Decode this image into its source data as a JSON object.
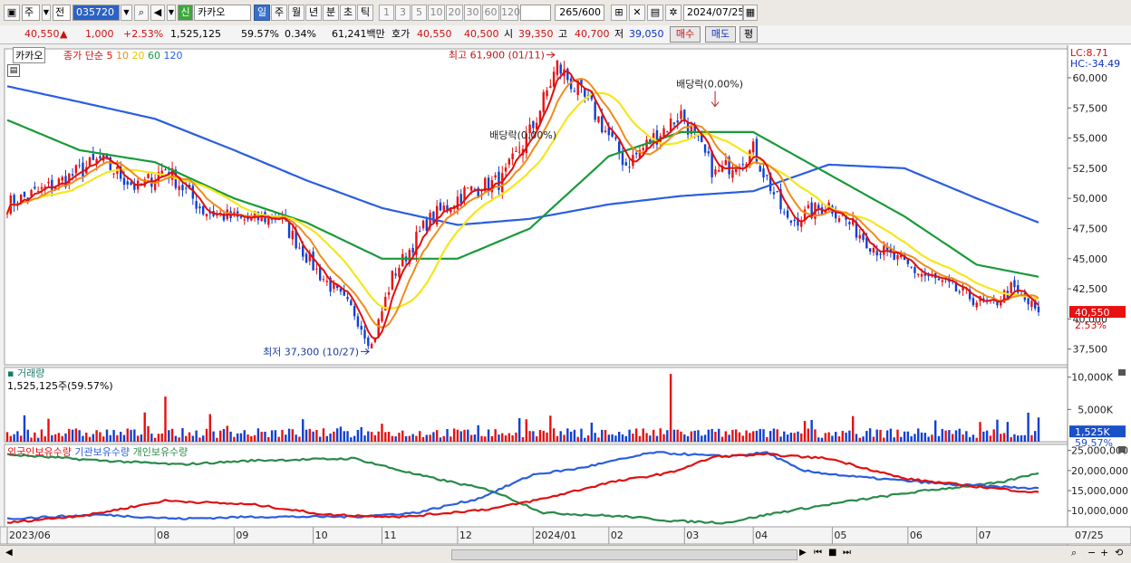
{
  "toolbar": {
    "period": "주",
    "prev": "전",
    "code": "035720",
    "badge": "신",
    "name": "카카오",
    "tabs": [
      "일",
      "주",
      "월",
      "년",
      "분",
      "초",
      "틱"
    ],
    "numtabs": [
      "1",
      "3",
      "5",
      "10",
      "20",
      "30",
      "60",
      "120"
    ],
    "count": "265",
    "count_total": "/600",
    "date": "2024/07/25"
  },
  "quote": {
    "price": "40,550",
    "arrow": "▲",
    "change": "1,000",
    "rate": "+2.53%",
    "volume": "1,525,125",
    "vol_ratio": "59.57%",
    "turnover": "0.34%",
    "amount": "61,241백만",
    "ask_label": "호가",
    "ask": "40,550",
    "bid": "40,500",
    "open_label": "시",
    "open": "39,350",
    "high_label": "고",
    "high": "40,700",
    "low_label": "저",
    "low": "39,050",
    "buy": "매수",
    "sell": "매도",
    "eval": "평"
  },
  "colors": {
    "up": "#e81010",
    "down": "#1040d0",
    "ma5": "#e01010",
    "ma10": "#f08c1c",
    "ma20": "#f5e61c",
    "ma60": "#1a9a3a",
    "ma120": "#2a5ee0",
    "foreign": "#e01010",
    "inst": "#2a5ee0",
    "retail": "#2a8a4a"
  },
  "chart_data": [
    {
      "type": "candlestick",
      "title": "카카오",
      "legend": {
        "price_type": "종가 단순",
        "ma": [
          "5",
          "10",
          "20",
          "60",
          "120"
        ]
      },
      "y_ticks": [
        37500,
        40000,
        42500,
        45000,
        47500,
        50000,
        52500,
        55000,
        57500,
        60000
      ],
      "y_range": [
        36200,
        62400
      ],
      "x_ticks": [
        "2023/06",
        "08",
        "09",
        "10",
        "11",
        "12",
        "2024/01",
        "02",
        "03",
        "04",
        "05",
        "06",
        "07",
        "07/25"
      ],
      "x_range": [
        "2023-06-01",
        "2024-07-25"
      ],
      "series_anchor": [
        [
          "2023-06-01",
          49500
        ],
        [
          "2023-06-20",
          51000
        ],
        [
          "2023-07-10",
          53200
        ],
        [
          "2023-07-25",
          50800
        ],
        [
          "2023-08-05",
          52500
        ],
        [
          "2023-08-20",
          49000
        ],
        [
          "2023-09-05",
          48200
        ],
        [
          "2023-09-20",
          48500
        ],
        [
          "2023-10-05",
          44000
        ],
        [
          "2023-10-20",
          40500
        ],
        [
          "2023-10-27",
          37800
        ],
        [
          "2023-11-06",
          43500
        ],
        [
          "2023-11-20",
          48000
        ],
        [
          "2023-12-05",
          50500
        ],
        [
          "2023-12-20",
          51500
        ],
        [
          "2024-01-02",
          56000
        ],
        [
          "2024-01-11",
          61000
        ],
        [
          "2024-01-25",
          57500
        ],
        [
          "2024-02-08",
          52800
        ],
        [
          "2024-02-20",
          55000
        ],
        [
          "2024-03-02",
          57000
        ],
        [
          "2024-03-15",
          52000
        ],
        [
          "2024-04-01",
          54000
        ],
        [
          "2024-04-15",
          48000
        ],
        [
          "2024-05-01",
          49500
        ],
        [
          "2024-05-20",
          46000
        ],
        [
          "2024-06-05",
          44000
        ],
        [
          "2024-06-20",
          42500
        ],
        [
          "2024-07-05",
          41000
        ],
        [
          "2024-07-15",
          42500
        ],
        [
          "2024-07-25",
          40550
        ]
      ],
      "ma120_anchor": [
        [
          "2023-06-01",
          59300
        ],
        [
          "2023-07-01",
          58000
        ],
        [
          "2023-08-01",
          56600
        ],
        [
          "2023-09-01",
          54000
        ],
        [
          "2023-10-01",
          51500
        ],
        [
          "2023-11-01",
          49200
        ],
        [
          "2023-12-01",
          47800
        ],
        [
          "2024-01-01",
          48300
        ],
        [
          "2024-02-01",
          49500
        ],
        [
          "2024-03-01",
          50200
        ],
        [
          "2024-04-01",
          50600
        ],
        [
          "2024-05-01",
          52800
        ],
        [
          "2024-06-01",
          52500
        ],
        [
          "2024-07-01",
          50000
        ],
        [
          "2024-07-25",
          48000
        ]
      ],
      "ma60_anchor": [
        [
          "2023-06-01",
          56500
        ],
        [
          "2023-07-01",
          54000
        ],
        [
          "2023-08-01",
          53000
        ],
        [
          "2023-09-01",
          50000
        ],
        [
          "2023-10-01",
          48000
        ],
        [
          "2023-11-01",
          45000
        ],
        [
          "2023-12-01",
          45000
        ],
        [
          "2024-01-01",
          47500
        ],
        [
          "2024-02-01",
          53500
        ],
        [
          "2024-03-01",
          55500
        ],
        [
          "2024-04-01",
          55500
        ],
        [
          "2024-05-01",
          52000
        ],
        [
          "2024-06-01",
          48500
        ],
        [
          "2024-07-01",
          44500
        ],
        [
          "2024-07-25",
          43500
        ]
      ],
      "annotations": [
        {
          "text": "최고 61,900 (01/11)",
          "date": "2024-01-11",
          "value": 61900
        },
        {
          "text": "최저 37,300 (10/27)",
          "date": "2023-10-27",
          "value": 37300
        },
        {
          "text": "배당락(0.00%)",
          "date": "2023-12-27",
          "value": 54500
        },
        {
          "text": "배당락(0.00%)",
          "date": "2024-03-05",
          "value": 59200
        }
      ],
      "right_labels": {
        "lc": "LC:8.71",
        "hc": "HC:-34.49",
        "last": "40,550",
        "last_rate": "2.53%"
      }
    },
    {
      "type": "bar",
      "title": "거래량",
      "subtitle": "1,525,125주(59.57%)",
      "y_ticks": [
        "5,000K",
        "10,000K"
      ],
      "y_range": [
        0,
        11500
      ],
      "right_labels": {
        "last": "1,525K",
        "rate": "59.57%"
      },
      "spikes": [
        [
          "2023-08-05",
          7000
        ],
        [
          "2024-02-27",
          10500
        ],
        [
          "2024-07-22",
          4500
        ]
      ]
    },
    {
      "type": "line",
      "series_names": [
        "외국인보유수량",
        "기관보유수량",
        "개인보유수량"
      ],
      "y_ticks": [
        "10,000,000",
        "15,000,000",
        "20,000,000",
        "25,000,000"
      ],
      "y_range": [
        6000000,
        26500000
      ]
    }
  ],
  "icons": [
    "menu-icon",
    "dropdown-icon",
    "search-icon",
    "speaker-icon",
    "calendar-icon",
    "gear-icon",
    "save-icon",
    "zoom-icon"
  ]
}
